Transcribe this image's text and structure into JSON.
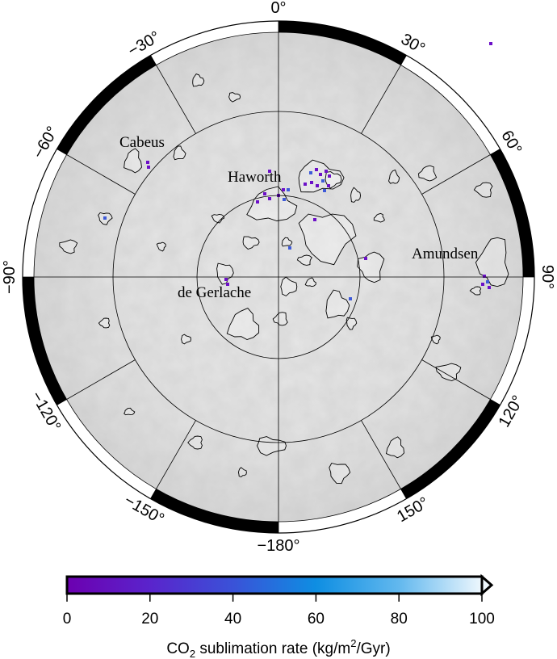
{
  "map": {
    "projection": "south polar stereographic",
    "longitude_labels": [
      "0°",
      "30°",
      "60°",
      "90°",
      "120°",
      "150°",
      "−180°",
      "−150°",
      "−120°",
      "−90°",
      "−60°",
      "−30°"
    ],
    "longitudes": [
      0,
      30,
      60,
      90,
      120,
      150,
      180,
      -150,
      -120,
      -90,
      -60,
      -30
    ],
    "craters": [
      {
        "name": "Cabeus"
      },
      {
        "name": "Haworth"
      },
      {
        "name": "Amundsen"
      },
      {
        "name": "de Gerlache"
      }
    ]
  },
  "colorbar": {
    "label_main": "CO",
    "label_sub": "2",
    "label_mid": " sublimation rate (kg/m",
    "label_sup": "2",
    "label_end": "/Gyr)",
    "ticks": [
      "0",
      "20",
      "40",
      "60",
      "80",
      "100"
    ],
    "range": [
      0,
      100
    ],
    "extend": "max",
    "colors": [
      "#6c00b0",
      "#5a24cc",
      "#3a52d8",
      "#0e8ee2",
      "#62b8ee",
      "#eef7fd"
    ]
  }
}
